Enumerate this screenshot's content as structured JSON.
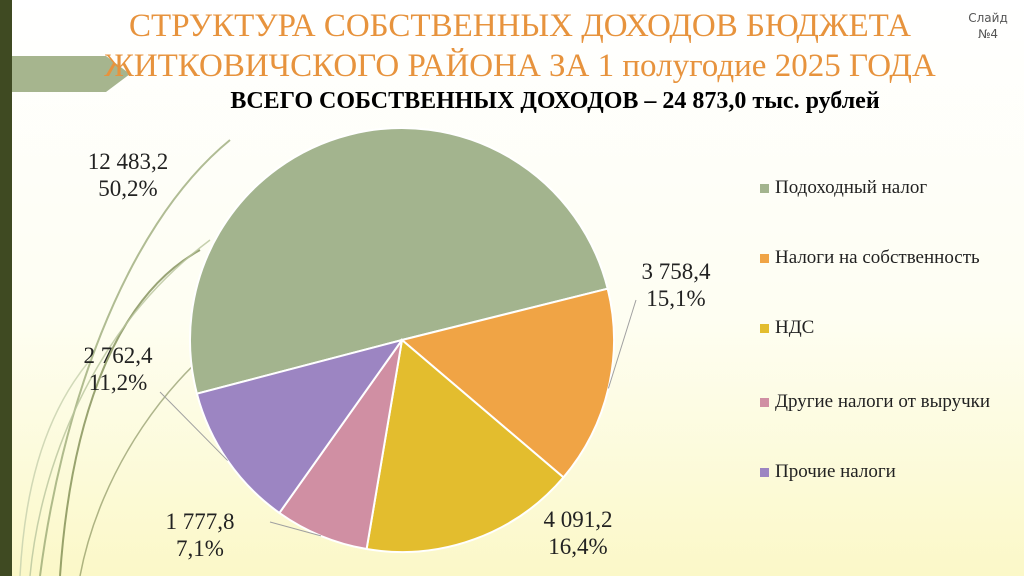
{
  "slide": {
    "title_line1": "СТРУКТУРА СОБСТВЕННЫХ ДОХОДОВ БЮДЖЕТА",
    "title_line2": "ЖИТКОВИЧСКОГО РАЙОНА ЗА 1 полугодие 2025 ГОДА",
    "slide_label": "Слайд",
    "slide_number": "№4"
  },
  "chart_data": {
    "type": "pie",
    "title": "ВСЕГО СОБСТВЕННЫХ ДОХОДОВ – 24 873,0  тыс. рублей",
    "legend_position": "right",
    "slices": [
      {
        "name": "Подоходный налог",
        "value": 12483.2,
        "value_label": "12 483,2",
        "percent_label": "50,2%",
        "color": "#a3b48e"
      },
      {
        "name": "Налоги на собственность",
        "value": 3758.4,
        "value_label": "3 758,4",
        "percent_label": "15,1%",
        "color": "#f0a445"
      },
      {
        "name": "НДС",
        "value": 4091.2,
        "value_label": "4 091,2",
        "percent_label": "16,4%",
        "color": "#e3bd2e"
      },
      {
        "name": "Другие налоги от выручки",
        "value": 1777.8,
        "value_label": "1 777,8",
        "percent_label": "7,1%",
        "color": "#d08fa3"
      },
      {
        "name": "Прочие налоги",
        "value": 2762.4,
        "value_label": "2 762,4",
        "percent_label": "11,2%",
        "color": "#9c85c2"
      }
    ]
  }
}
